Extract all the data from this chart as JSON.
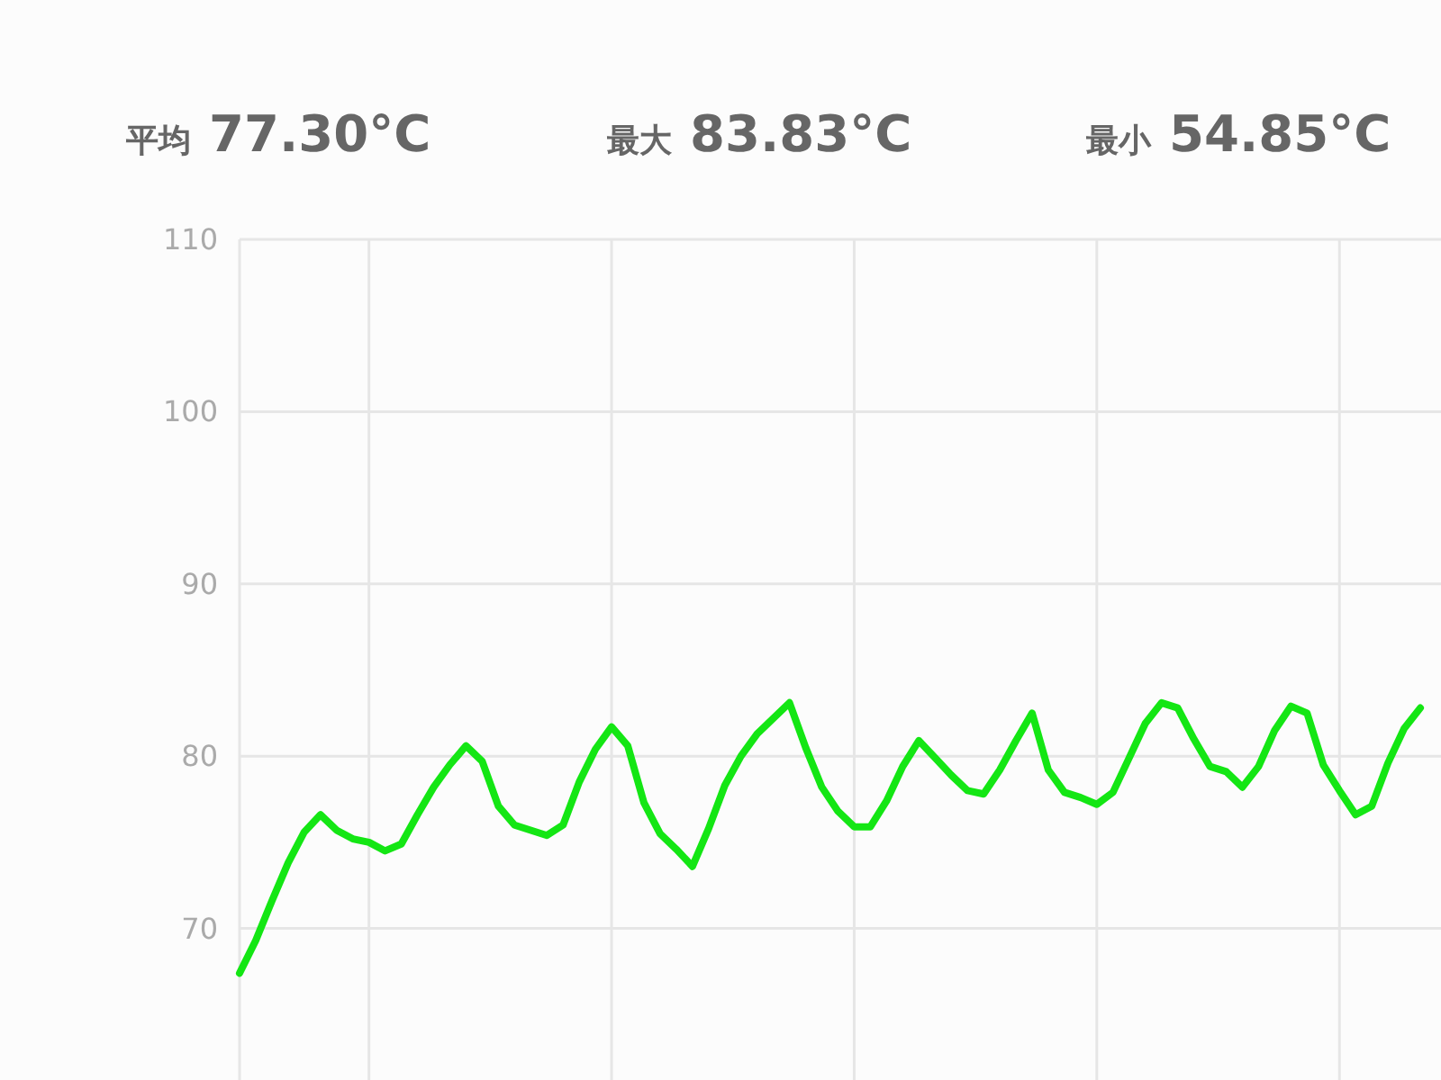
{
  "chart_data": {
    "type": "line",
    "annotations": [
      "平均 77.30°C",
      "最大 83.83°C",
      "最小 54.85°C"
    ],
    "categories": [
      null,
      null,
      null,
      null,
      null,
      null,
      null,
      null,
      null,
      null,
      null,
      null,
      null,
      null,
      null,
      null,
      null,
      null,
      null,
      null,
      null,
      null,
      null,
      null,
      null,
      null,
      null,
      null,
      null,
      null,
      null,
      null,
      null,
      null,
      null,
      null,
      null,
      null,
      null,
      null,
      null,
      null,
      null,
      null,
      null,
      null,
      null,
      null,
      null,
      null,
      null,
      null,
      null,
      null,
      null,
      null,
      null,
      null,
      null,
      null,
      null,
      null,
      null,
      null,
      null,
      null,
      null,
      null,
      null,
      null,
      null,
      null,
      null,
      null
    ],
    "series": [
      {
        "color": "#14e614",
        "values": [
          67.4,
          69.3,
          71.6,
          73.8,
          75.6,
          76.6,
          75.7,
          75.2,
          75.0,
          74.5,
          74.9,
          76.6,
          78.2,
          79.5,
          80.6,
          79.7,
          77.1,
          76.0,
          75.7,
          75.4,
          76.0,
          78.5,
          80.4,
          81.7,
          80.6,
          77.3,
          75.5,
          74.6,
          73.6,
          75.8,
          78.3,
          80.0,
          81.3,
          82.2,
          83.1,
          80.5,
          78.2,
          76.8,
          75.9,
          75.9,
          77.4,
          79.4,
          80.9,
          79.9,
          78.9,
          78.0,
          77.8,
          79.2,
          80.9,
          82.5,
          79.2,
          77.9,
          77.6,
          77.2,
          77.9,
          79.9,
          81.9,
          83.1,
          82.8,
          81.0,
          79.4,
          79.1,
          78.2,
          79.4,
          81.5,
          82.9,
          82.5,
          79.5,
          78.0,
          76.6,
          77.1,
          79.6,
          81.6,
          82.8
        ]
      }
    ],
    "ylim": [
      61.2,
      110
    ],
    "yticks": [
      70,
      80,
      90,
      100,
      110
    ],
    "grid": true,
    "tick_labels": "y"
  }
}
